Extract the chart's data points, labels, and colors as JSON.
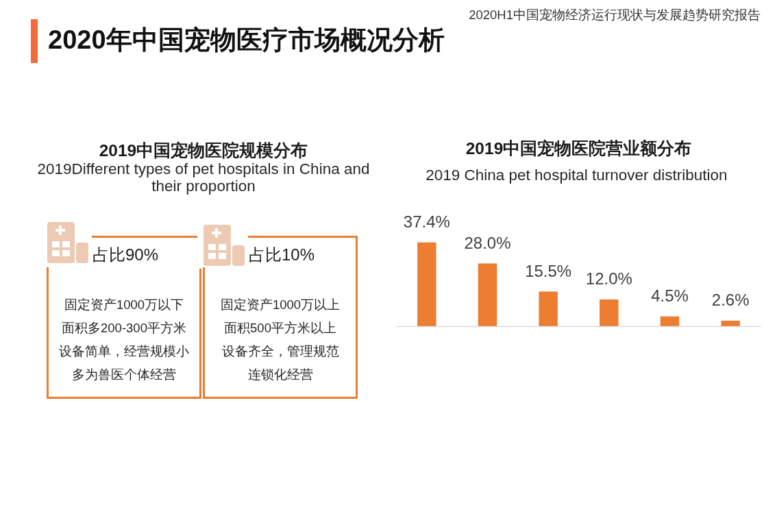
{
  "chart_data": [
    {
      "type": "other",
      "title": "2019中国宠物医院规模分布",
      "subtitle": "2019Different types of pet hospitals in China and their proportion",
      "annotations": [
        "2020年中国宠物医疗市场概况分析",
        "2020H1中国宠物经济运行现状与发展趋势研究报告",
        "占比90%",
        "固定资产1000万以下",
        "面积多200-300平方米",
        "设备简单，经营规模小",
        "多为兽医个体经营",
        "占比10%",
        "固定资产1000万以上",
        "面积500平方米以上",
        "设备齐全，管理规范",
        "连锁化经营"
      ]
    },
    {
      "type": "bar",
      "title": "2019中国宠物医院营业额分布",
      "subtitle": "2019 China pet  hospital turnover distribution",
      "categories": [
        null,
        null,
        null,
        null,
        null,
        null
      ],
      "values": [
        37.4,
        28.0,
        15.5,
        12.0,
        4.5,
        2.6
      ],
      "value_labels": [
        "37.4%",
        "28.0%",
        "15.5%",
        "12.0%",
        "4.5%",
        "2.6%"
      ],
      "color": "#ed7d31"
    }
  ]
}
